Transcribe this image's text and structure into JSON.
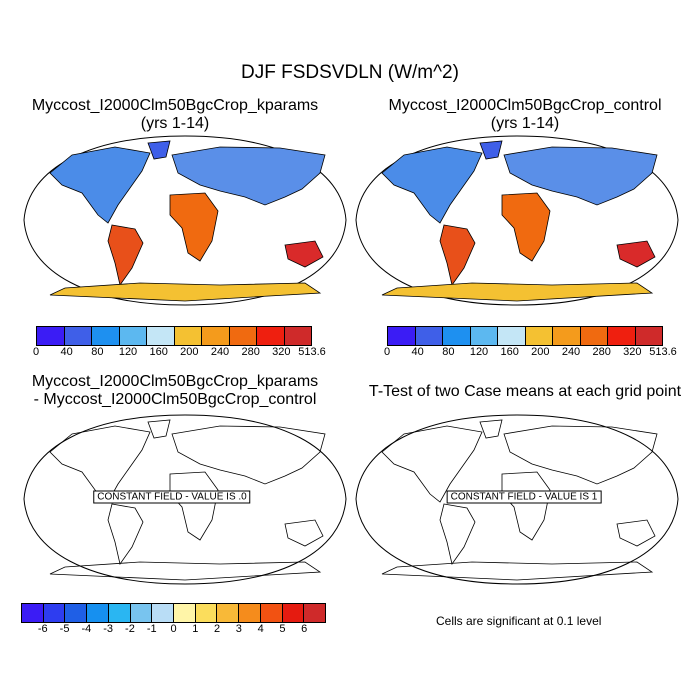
{
  "title": "DJF FSDSVDLN (W/m^2)",
  "panels": {
    "p1": {
      "line1": "Myccost_I2000Clm50BgcCrop_kparams",
      "line2": "(yrs 1-14)"
    },
    "p2": {
      "line1": "Myccost_I2000Clm50BgcCrop_control",
      "line2": "(yrs 1-14)"
    },
    "p3": {
      "line1": "Myccost_I2000Clm50BgcCrop_kparams",
      "line2": "- Myccost_I2000Clm50BgcCrop_control",
      "box": "CONSTANT FIELD - VALUE IS .0"
    },
    "p4": {
      "line1": "T-Test of two Case means at each grid point",
      "box": "CONSTANT FIELD - VALUE IS 1"
    }
  },
  "colorbar_top": {
    "labels": [
      "0",
      "40",
      "80",
      "120",
      "160",
      "200",
      "240",
      "280",
      "320",
      "513.6"
    ],
    "colors": [
      "#3b1cf5",
      "#3f5fe8",
      "#1e90f0",
      "#5cb8f0",
      "#c4e6f6",
      "#f4c132",
      "#f49b1c",
      "#f06a10",
      "#ef1f0f",
      "#cf2a2a"
    ]
  },
  "colorbar_diff": {
    "labels": [
      "-6",
      "-5",
      "-4",
      "-3",
      "-2",
      "-1",
      "0",
      "1",
      "2",
      "3",
      "4",
      "5",
      "6"
    ],
    "colors": [
      "#3b1cf5",
      "#2e3df0",
      "#1f5fe6",
      "#1690f0",
      "#2ab6f2",
      "#78c4ef",
      "#b9ddf6",
      "#fff5a8",
      "#fbdd5c",
      "#f8b938",
      "#f58c1c",
      "#f25212",
      "#e51b10",
      "#cf2a2a"
    ]
  },
  "note": "Cells are significant at 0.1 level"
}
